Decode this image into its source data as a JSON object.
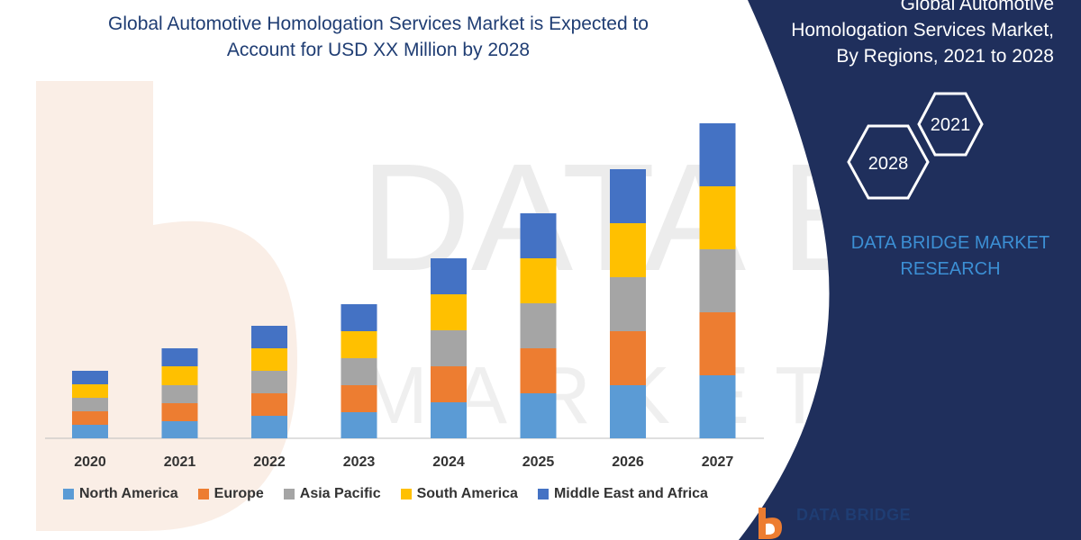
{
  "header": {
    "title_line1": "Global Automotive Homologation Services Market is Expected to",
    "title_line2": "Account for USD XX Million by 2028"
  },
  "side_panel": {
    "title_line1": "Global Automotive",
    "title_line2": "Homologation Services Market,",
    "title_line3": "By Regions, 2021 to 2028",
    "hex_year_a": "2021",
    "hex_year_b": "2028",
    "brand_line1": "DATA BRIDGE MARKET",
    "brand_line2": "RESEARCH",
    "panel_color": "#1f2f5c"
  },
  "footer": {
    "logo_text": "DATA BRIDGE"
  },
  "chart_data": {
    "type": "bar",
    "stacked": true,
    "categories": [
      "2020",
      "2021",
      "2022",
      "2023",
      "2024",
      "2025",
      "2026",
      "2027"
    ],
    "series": [
      {
        "name": "North America",
        "color": "#5b9bd5",
        "values": [
          15,
          19,
          25,
          29,
          40,
          50,
          59,
          70
        ]
      },
      {
        "name": "Europe",
        "color": "#ed7d31",
        "values": [
          15,
          20,
          25,
          30,
          40,
          50,
          60,
          70
        ]
      },
      {
        "name": "Asia Pacific",
        "color": "#a5a5a5",
        "values": [
          15,
          20,
          25,
          30,
          40,
          50,
          60,
          70
        ]
      },
      {
        "name": "South America",
        "color": "#ffc000",
        "values": [
          15,
          21,
          25,
          30,
          40,
          50,
          60,
          70
        ]
      },
      {
        "name": "Middle East and Africa",
        "color": "#4472c4",
        "values": [
          15,
          20,
          25,
          30,
          40,
          50,
          60,
          70
        ]
      }
    ],
    "ylim": [
      0,
      360
    ],
    "grid": false,
    "legend_position": "bottom"
  }
}
